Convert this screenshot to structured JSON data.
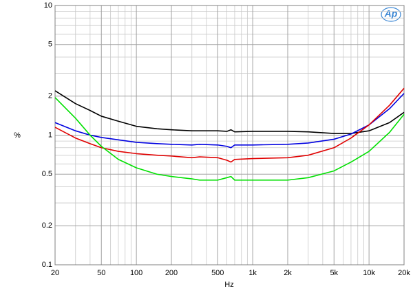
{
  "chart_data": {
    "type": "line",
    "x_label": "Hz",
    "y_label": "%",
    "logo": "Ap",
    "xscale": "log",
    "yscale": "log",
    "grid": true,
    "x": [
      20,
      30,
      40,
      50,
      70,
      100,
      150,
      200,
      300,
      350,
      500,
      600,
      650,
      700,
      1000,
      2000,
      3000,
      5000,
      7000,
      10000,
      15000,
      20000
    ],
    "series": [
      {
        "color": "#000000",
        "values": [
          2.2,
          1.75,
          1.55,
          1.4,
          1.28,
          1.17,
          1.12,
          1.1,
          1.08,
          1.08,
          1.08,
          1.07,
          1.1,
          1.06,
          1.07,
          1.07,
          1.06,
          1.03,
          1.03,
          1.08,
          1.25,
          1.5
        ]
      },
      {
        "color": "#0000e0",
        "values": [
          1.25,
          1.08,
          1.0,
          0.96,
          0.92,
          0.88,
          0.86,
          0.85,
          0.84,
          0.85,
          0.84,
          0.82,
          0.8,
          0.84,
          0.84,
          0.85,
          0.87,
          0.93,
          1.02,
          1.2,
          1.6,
          2.1
        ]
      },
      {
        "color": "#e00000",
        "values": [
          1.15,
          0.95,
          0.86,
          0.8,
          0.75,
          0.72,
          0.7,
          0.69,
          0.67,
          0.68,
          0.67,
          0.64,
          0.62,
          0.65,
          0.66,
          0.67,
          0.7,
          0.8,
          0.95,
          1.2,
          1.7,
          2.3
        ]
      },
      {
        "color": "#00e000",
        "values": [
          1.95,
          1.35,
          1.0,
          0.82,
          0.65,
          0.56,
          0.5,
          0.48,
          0.46,
          0.45,
          0.45,
          0.47,
          0.48,
          0.45,
          0.45,
          0.45,
          0.47,
          0.53,
          0.62,
          0.75,
          1.05,
          1.45
        ]
      }
    ],
    "xlim": [
      20,
      20000
    ],
    "xticks": [
      20,
      50,
      100,
      200,
      500,
      {
        "value": 1000,
        "label": "1k"
      },
      {
        "value": 2000,
        "label": "2k"
      },
      {
        "value": 5000,
        "label": "5k"
      },
      {
        "value": 10000,
        "label": "10k"
      },
      {
        "value": 20000,
        "label": "20k"
      }
    ],
    "xminorticks": [
      30,
      40,
      60,
      70,
      80,
      90,
      300,
      400,
      600,
      700,
      800,
      900,
      3000,
      4000,
      6000,
      7000,
      8000,
      9000
    ],
    "ylim": [
      0.1,
      10
    ],
    "yticks": [
      0.1,
      0.2,
      0.5,
      1,
      2,
      5,
      10
    ],
    "yminorticks": [
      0.3,
      0.4,
      0.6,
      0.7,
      0.8,
      0.9,
      3,
      4,
      6,
      7,
      8,
      9
    ]
  }
}
